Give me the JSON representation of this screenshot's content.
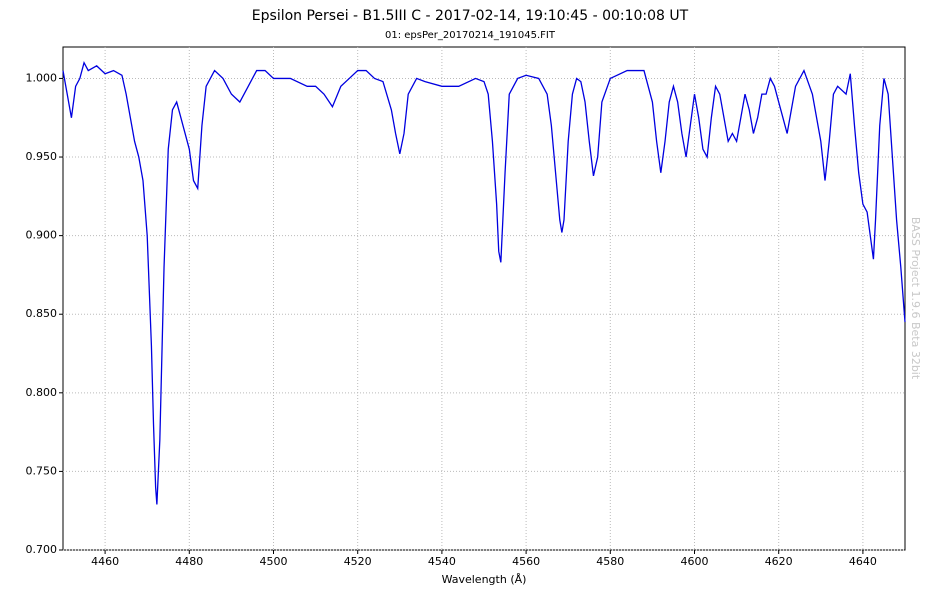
{
  "chart_data": {
    "type": "line",
    "title": "Epsilon Persei - B1.5III C - 2017-02-14, 19:10:45 - 00:10:08 UT",
    "subtitle": "01: epsPer_20170214_191045.FIT",
    "xlabel": "Wavelength (Å)",
    "watermark": "BASS Project 1.9.6 Beta 32bit",
    "x": [
      4450,
      4451,
      4452,
      4453,
      4454,
      4455,
      4456,
      4458,
      4460,
      4462,
      4464,
      4465,
      4466,
      4467,
      4468,
      4469,
      4470,
      4471,
      4471.5,
      4472,
      4472.3,
      4473,
      4474,
      4475,
      4476,
      4477,
      4478,
      4479,
      4480,
      4481,
      4482,
      4483,
      4484,
      4486,
      4488,
      4490,
      4492,
      4494,
      4496,
      4498,
      4500,
      4504,
      4508,
      4510,
      4512,
      4514,
      4516,
      4518,
      4520,
      4522,
      4524,
      4526,
      4528,
      4529,
      4530,
      4531,
      4532,
      4534,
      4536,
      4540,
      4544,
      4548,
      4550,
      4551,
      4552,
      4553,
      4553.5,
      4554,
      4555,
      4556,
      4558,
      4560,
      4563,
      4565,
      4566,
      4567,
      4568,
      4568.5,
      4569,
      4570,
      4571,
      4572,
      4573,
      4574,
      4575,
      4576,
      4577,
      4578,
      4580,
      4584,
      4588,
      4590,
      4591,
      4592,
      4593,
      4594,
      4595,
      4596,
      4597,
      4598,
      4599,
      4600,
      4601,
      4602,
      4603,
      4604,
      4605,
      4606,
      4607,
      4608,
      4609,
      4610,
      4611,
      4612,
      4613,
      4614,
      4615,
      4616,
      4617,
      4618,
      4619,
      4620,
      4621,
      4622,
      4623,
      4624,
      4626,
      4628,
      4630,
      4631,
      4632,
      4633,
      4634,
      4636,
      4637,
      4638,
      4639,
      4640,
      4641,
      4642,
      4642.5,
      4643,
      4644,
      4645,
      4646,
      4647,
      4648,
      4649,
      4650
    ],
    "series": [
      {
        "name": "epsPer",
        "color": "#0000e0",
        "values": [
          1.005,
          0.99,
          0.975,
          0.995,
          1.0,
          1.01,
          1.005,
          1.008,
          1.003,
          1.005,
          1.002,
          0.99,
          0.975,
          0.96,
          0.95,
          0.935,
          0.9,
          0.83,
          0.78,
          0.74,
          0.729,
          0.77,
          0.88,
          0.955,
          0.98,
          0.985,
          0.975,
          0.965,
          0.955,
          0.935,
          0.93,
          0.97,
          0.995,
          1.005,
          1.0,
          0.99,
          0.985,
          0.995,
          1.005,
          1.005,
          1.0,
          1.0,
          0.995,
          0.995,
          0.99,
          0.982,
          0.995,
          1.0,
          1.005,
          1.005,
          1.0,
          0.998,
          0.98,
          0.965,
          0.952,
          0.965,
          0.99,
          1.0,
          0.998,
          0.995,
          0.995,
          1.0,
          0.998,
          0.99,
          0.96,
          0.92,
          0.89,
          0.883,
          0.94,
          0.99,
          1.0,
          1.002,
          1.0,
          0.99,
          0.97,
          0.94,
          0.91,
          0.902,
          0.91,
          0.96,
          0.99,
          1.0,
          0.998,
          0.985,
          0.96,
          0.938,
          0.95,
          0.985,
          1.0,
          1.005,
          1.005,
          0.985,
          0.96,
          0.94,
          0.96,
          0.985,
          0.995,
          0.985,
          0.965,
          0.95,
          0.97,
          0.99,
          0.975,
          0.955,
          0.95,
          0.975,
          0.995,
          0.99,
          0.975,
          0.96,
          0.965,
          0.96,
          0.975,
          0.99,
          0.98,
          0.965,
          0.975,
          0.99,
          0.99,
          1.0,
          0.995,
          0.985,
          0.975,
          0.965,
          0.98,
          0.995,
          1.005,
          0.99,
          0.96,
          0.935,
          0.96,
          0.99,
          0.995,
          0.99,
          1.003,
          0.97,
          0.94,
          0.92,
          0.915,
          0.895,
          0.885,
          0.91,
          0.97,
          1.0,
          0.99,
          0.95,
          0.91,
          0.88,
          0.845
        ]
      }
    ],
    "xlim": [
      4450,
      4650
    ],
    "ylim": [
      0.7,
      1.02
    ],
    "xticks": [
      4460,
      4480,
      4500,
      4520,
      4540,
      4560,
      4580,
      4600,
      4620,
      4640
    ],
    "yticks": [
      {
        "value": 0.7,
        "label": "0.700"
      },
      {
        "value": 0.75,
        "label": "0.750"
      },
      {
        "value": 0.8,
        "label": "0.800"
      },
      {
        "value": 0.85,
        "label": "0.850"
      },
      {
        "value": 0.9,
        "label": "0.900"
      },
      {
        "value": 0.95,
        "label": "0.950"
      },
      {
        "value": 1.0,
        "label": "1.000"
      }
    ],
    "grid": true
  }
}
